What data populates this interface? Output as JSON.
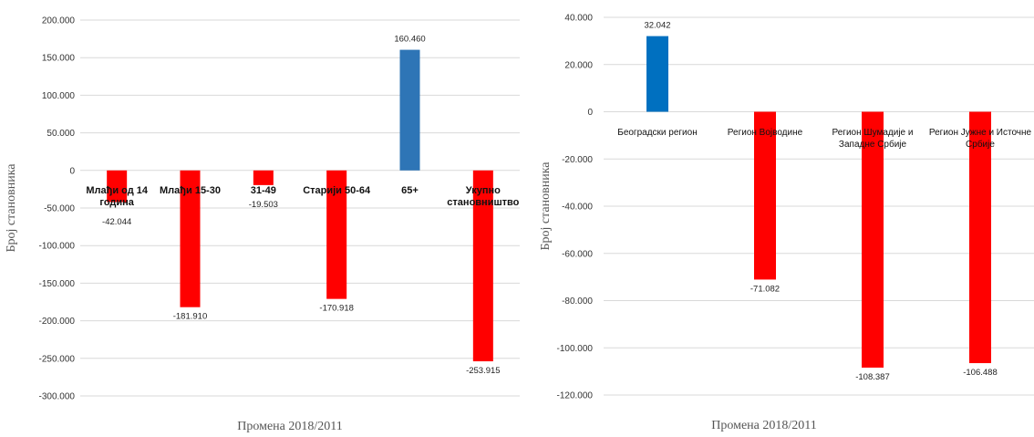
{
  "chart_data": [
    {
      "type": "bar",
      "categories": [
        "Млађи од 14 година",
        "Млађи 15-30",
        "31-49",
        "Старији 50-64",
        "65+",
        "Укупно становништво"
      ],
      "values": [
        -42044,
        -181910,
        -19503,
        -170918,
        160460,
        -253915
      ],
      "value_labels": [
        "-42.044",
        "-181.910",
        "-19.503",
        "-170.918",
        "160.460",
        "-253.915"
      ],
      "colors": [
        "#ff0000",
        "#ff0000",
        "#ff0000",
        "#ff0000",
        "#2e75b6",
        "#ff0000"
      ],
      "xlabel": "Промена 2018/2011",
      "ylabel": "Број становника",
      "ylim": [
        -300000,
        200000
      ],
      "yticks": [
        200000,
        150000,
        100000,
        50000,
        0,
        -50000,
        -100000,
        -150000,
        -200000,
        -250000,
        -300000
      ],
      "ytick_labels": [
        "200.000",
        "150.000",
        "100.000",
        "50.000",
        "0",
        "-50.000",
        "-100.000",
        "-150.000",
        "-200.000",
        "-250.000",
        "-300.000"
      ],
      "grid": true
    },
    {
      "type": "bar",
      "categories": [
        "Београдски регион",
        "Регион Војводине",
        "Регион Шумадије и Западне Србије",
        "Регион Јужне и Источне Србије"
      ],
      "values": [
        32042,
        -71082,
        -108387,
        -106488
      ],
      "value_labels": [
        "32.042",
        "-71.082",
        "-108.387",
        "-106.488"
      ],
      "colors": [
        "#0070c0",
        "#ff0000",
        "#ff0000",
        "#ff0000"
      ],
      "xlabel": "Промена 2018/2011",
      "ylabel": "Број становника",
      "ylim": [
        -120000,
        40000
      ],
      "yticks": [
        40000,
        20000,
        0,
        -20000,
        -40000,
        -60000,
        -80000,
        -100000,
        -120000
      ],
      "ytick_labels": [
        "40.000",
        "20.000",
        "0",
        "-20.000",
        "-40.000",
        "-60.000",
        "-80.000",
        "-100.000",
        "-120.000"
      ],
      "grid": true
    }
  ]
}
